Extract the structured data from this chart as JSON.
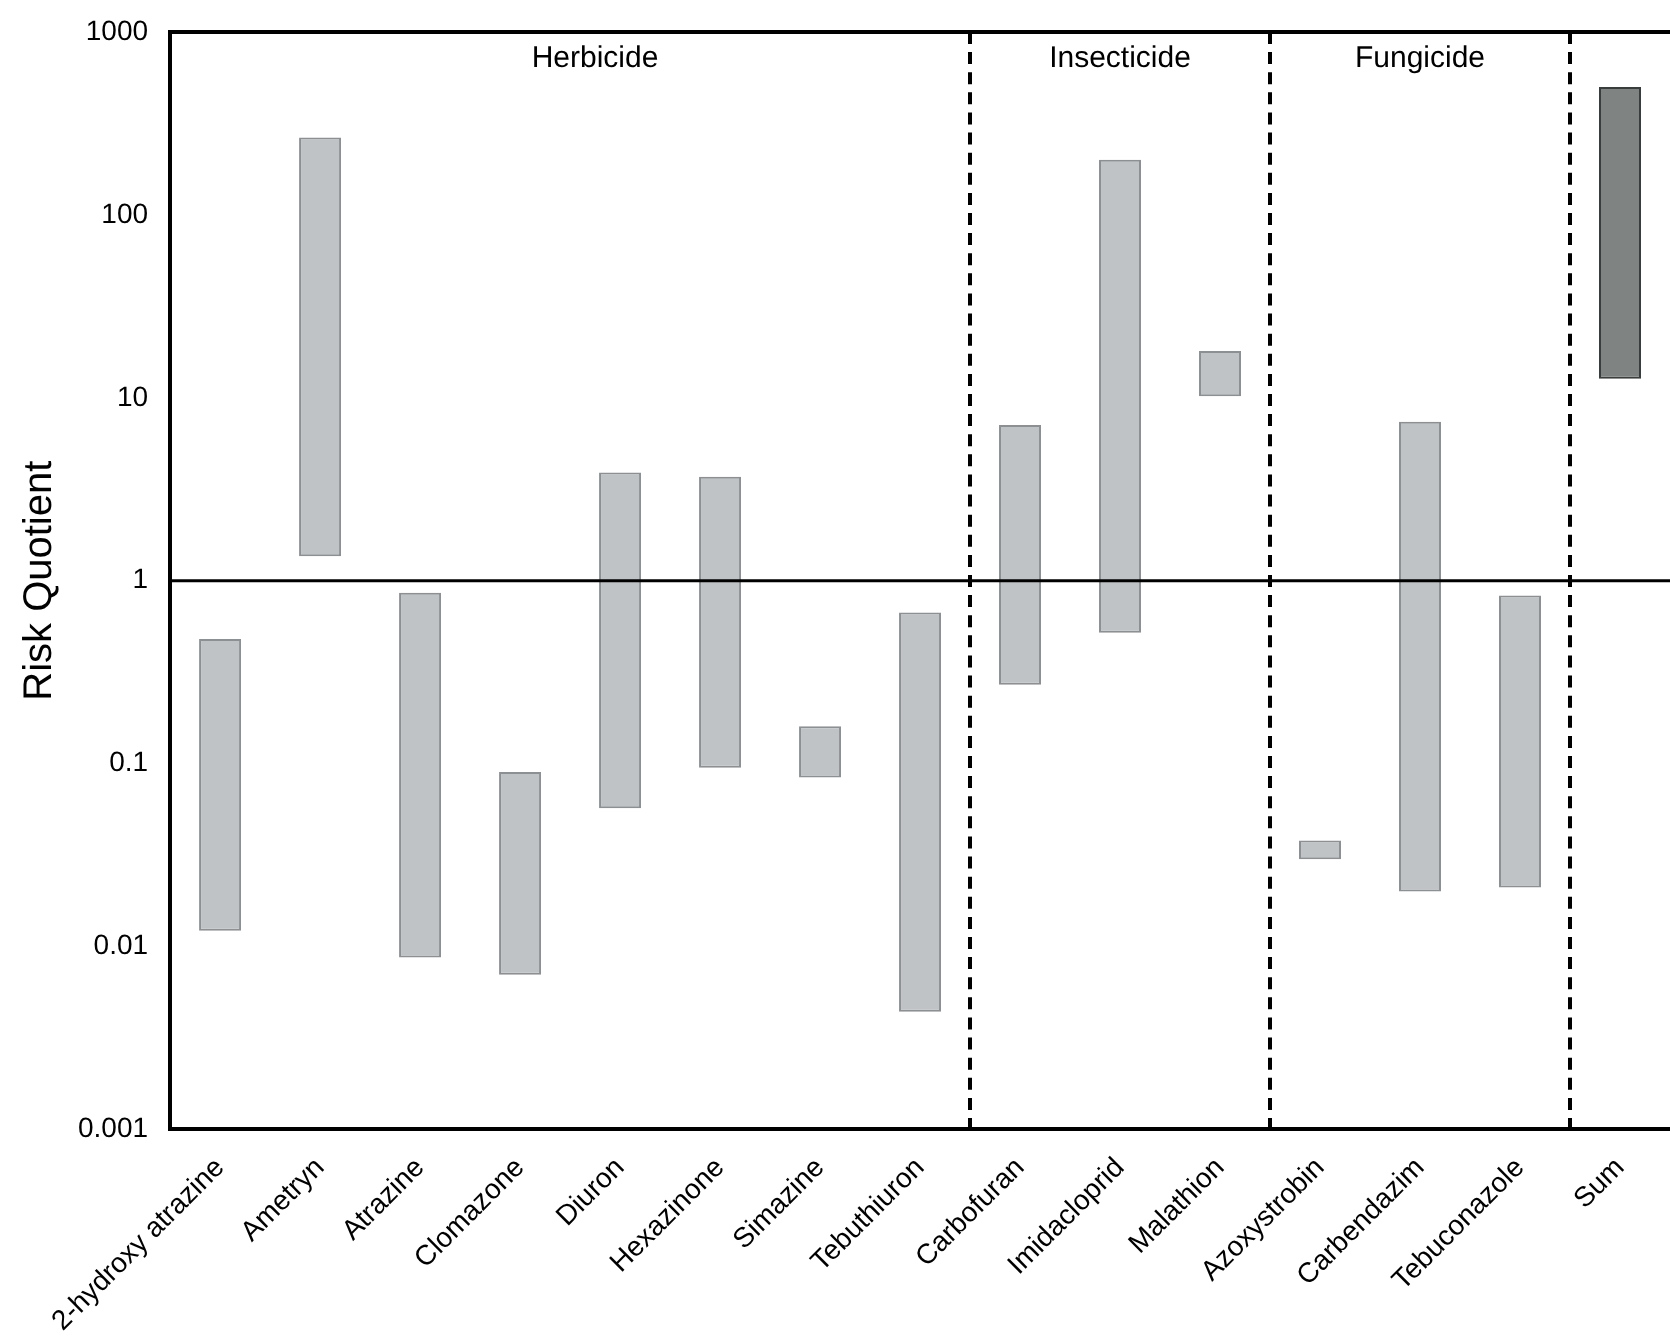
{
  "chart_data": {
    "type": "bar",
    "ylabel": "Risk Quotient",
    "log": "y",
    "categories": [
      "2-hydroxy atrazine",
      "Ametryn",
      "Atrazine",
      "Clomazone",
      "Diuron",
      "Hexazinone",
      "Simazine",
      "Tebuthiuron",
      "Carbofuran",
      "Imidacloprid",
      "Malathion",
      "Azoxystrobin",
      "Carbendazim",
      "Tebuconazole",
      "Sum"
    ],
    "base": [
      0.0122,
      1.36,
      0.0087,
      0.007,
      0.057,
      0.095,
      0.084,
      0.0044,
      0.27,
      0.52,
      10.2,
      0.03,
      0.02,
      0.021,
      12.7
    ],
    "values": [
      0.4678,
      263.64,
      0.8513,
      0.083,
      3.843,
      3.605,
      0.076,
      0.6656,
      6.83,
      199.48,
      7.8,
      0.008,
      7.38,
      0.809,
      487.3
    ],
    "colors": [
      "#c0c3c6",
      "#c0c3c6",
      "#c0c3c6",
      "#c0c3c6",
      "#c0c3c6",
      "#c0c3c6",
      "#c0c3c6",
      "#c0c3c6",
      "#c0c3c6",
      "#c0c3c6",
      "#c0c3c6",
      "#c0c3c6",
      "#c0c3c6",
      "#c0c3c6",
      "#7f8382"
    ],
    "ylim": [
      0.001,
      1000
    ],
    "yticks": [
      0.001,
      0.01,
      0.1,
      1,
      10,
      100,
      1000
    ],
    "ref_lines": [
      {
        "axis": "y",
        "value": 1
      }
    ],
    "annotations": [
      "Herbicide",
      "Insecticide",
      "Fungicide"
    ]
  }
}
